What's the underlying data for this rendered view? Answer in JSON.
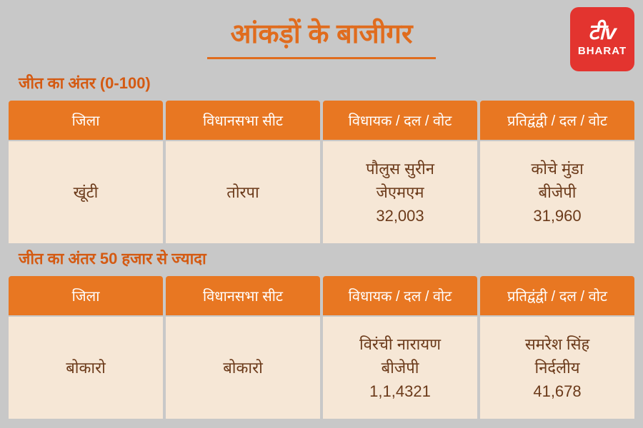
{
  "colors": {
    "page_bg": "#c8c8c8",
    "title_color": "#e06c1e",
    "underline_color": "#e06c1e",
    "section_label_color": "#d45a12",
    "header_bg": "#e87722",
    "header_text": "#ffffff",
    "cell_bg": "#f6e7d6",
    "cell_text": "#6b3a1a",
    "logo_bg": "#e3342f"
  },
  "title": "आंकड़ों के बाजीगर",
  "logo": {
    "icon": "टीv",
    "text": "BHARAT"
  },
  "columns": [
    "जिला",
    "विधानसभा सीट",
    "विधायक / दल / वोट",
    "प्रतिद्वंद्वी / दल / वोट"
  ],
  "sections": [
    {
      "label": "जीत का अंतर (0-100)",
      "row": {
        "district": "खूंटी",
        "seat": "तोरपा",
        "winner": {
          "name": "पौलुस सुरीन",
          "party": "जेएमएम",
          "votes": "32,003"
        },
        "rival": {
          "name": "कोचे मुंडा",
          "party": "बीजेपी",
          "votes": "31,960"
        }
      }
    },
    {
      "label": "जीत का अंतर 50 हजार से ज्यादा",
      "row": {
        "district": "बोकारो",
        "seat": "बोकारो",
        "winner": {
          "name": "विरंची नारायण",
          "party": "बीजेपी",
          "votes": "1,1,4321"
        },
        "rival": {
          "name": "समरेश सिंह",
          "party": "निर्दलीय",
          "votes": "41,678"
        }
      }
    }
  ]
}
